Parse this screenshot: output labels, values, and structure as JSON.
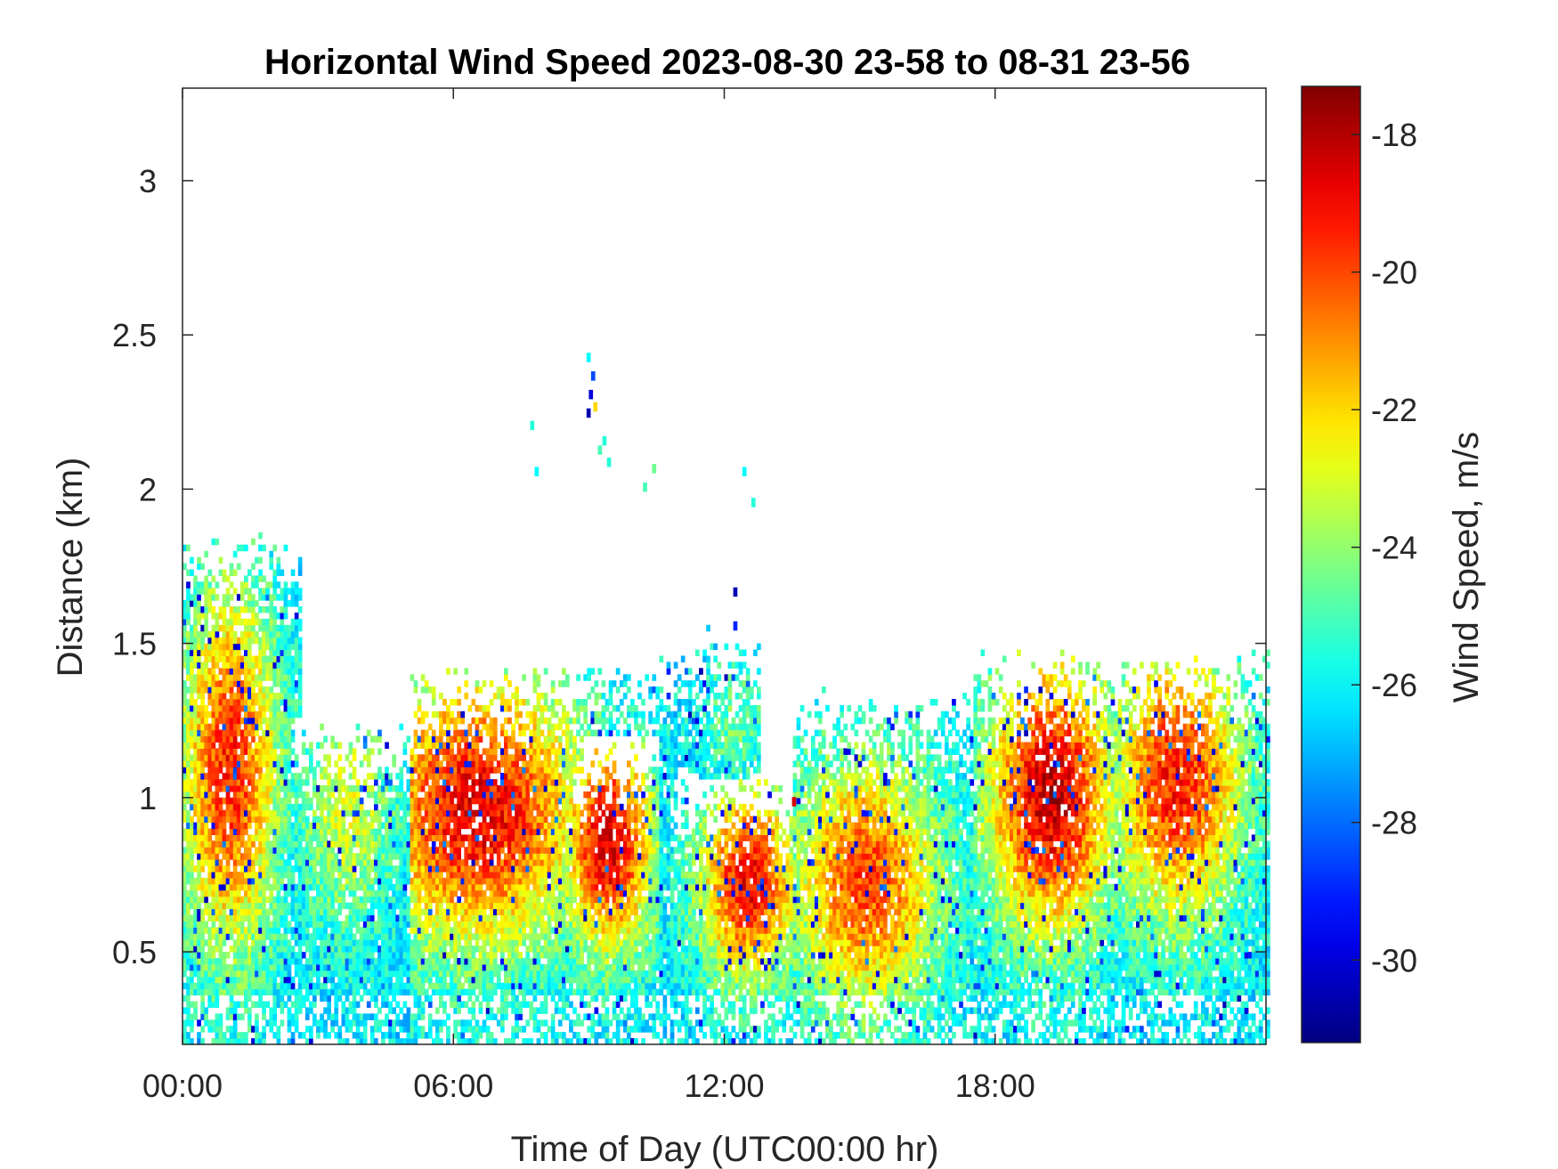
{
  "chart_data": {
    "type": "heatmap",
    "title": "Horizontal Wind Speed 2023-08-30 23-58 to 08-31 23-56",
    "xlabel": "Time of Day (UTC00:00 hr)",
    "ylabel": "Distance (km)",
    "colorbar_label": "Wind Speed, m/s",
    "x_unit": "hour",
    "xlim": [
      0,
      24
    ],
    "ylim": [
      0.2,
      3.3
    ],
    "clim": [
      -31.2,
      -17.3
    ],
    "colormap": "jet",
    "x_ticks": [
      0,
      6,
      12,
      18
    ],
    "x_tick_labels": [
      "00:00",
      "06:00",
      "12:00",
      "18:00"
    ],
    "y_ticks": [
      0.5,
      1,
      1.5,
      2,
      2.5,
      3
    ],
    "y_tick_labels": [
      "0.5",
      "1",
      "1.5",
      "2",
      "2.5",
      "3"
    ],
    "c_ticks": [
      -18,
      -20,
      -22,
      -24,
      -26,
      -28,
      -30
    ],
    "c_tick_labels": [
      "-18",
      "-20",
      "-22",
      "-24",
      "-26",
      "-28",
      "-30"
    ],
    "grid": false,
    "layers": [
      {
        "time_hr": [
          0,
          2.6
        ],
        "height_km": [
          0.2,
          1.85
        ],
        "core_speed_ms": -19.5,
        "core_time_hr": 1.0,
        "core_height_km": 1.08
      },
      {
        "time_hr": [
          2.4,
          5.0
        ],
        "height_km": [
          0.2,
          1.25
        ],
        "core_speed_ms": -23.0,
        "core_time_hr": 3.6,
        "core_height_km": 0.95
      },
      {
        "time_hr": [
          5.0,
          11.0
        ],
        "height_km": [
          0.2,
          1.45
        ],
        "core_speed_ms": -18.8,
        "core_time_hr": 6.5,
        "core_height_km": 0.95
      },
      {
        "time_hr": [
          8.0,
          10.5
        ],
        "height_km": [
          0.2,
          1.2
        ],
        "core_speed_ms": -18.5,
        "core_time_hr": 9.4,
        "core_height_km": 0.85
      },
      {
        "time_hr": [
          10.8,
          13.5
        ],
        "height_km": [
          0.2,
          1.1
        ],
        "core_speed_ms": -19.0,
        "core_time_hr": 12.5,
        "core_height_km": 0.72
      },
      {
        "time_hr": [
          11.0,
          12.8
        ],
        "height_km": [
          1.0,
          1.55
        ],
        "core_speed_ms": -24.5,
        "core_time_hr": 12.2,
        "core_height_km": 1.25
      },
      {
        "time_hr": [
          13.5,
          17.5
        ],
        "height_km": [
          0.2,
          1.35
        ],
        "core_speed_ms": -20.0,
        "core_time_hr": 15.1,
        "core_height_km": 0.72
      },
      {
        "time_hr": [
          17.5,
          21.0
        ],
        "height_km": [
          0.2,
          1.48
        ],
        "core_speed_ms": -18.3,
        "core_time_hr": 19.2,
        "core_height_km": 1.0
      },
      {
        "time_hr": [
          20.5,
          24.0
        ],
        "height_km": [
          0.2,
          1.48
        ],
        "core_speed_ms": -19.3,
        "core_time_hr": 22.0,
        "core_height_km": 1.05
      }
    ],
    "sparse_returns": [
      {
        "time_hr": 8.95,
        "height_km": 2.42,
        "speed_ms": -26.0
      },
      {
        "time_hr": 9.05,
        "height_km": 2.36,
        "speed_ms": -28.5
      },
      {
        "time_hr": 9.0,
        "height_km": 2.3,
        "speed_ms": -30.0
      },
      {
        "time_hr": 8.95,
        "height_km": 2.24,
        "speed_ms": -30.5
      },
      {
        "time_hr": 9.1,
        "height_km": 2.26,
        "speed_ms": -22.0
      },
      {
        "time_hr": 7.7,
        "height_km": 2.2,
        "speed_ms": -25.5
      },
      {
        "time_hr": 7.8,
        "height_km": 2.05,
        "speed_ms": -26.0
      },
      {
        "time_hr": 9.3,
        "height_km": 2.15,
        "speed_ms": -25.5
      },
      {
        "time_hr": 9.2,
        "height_km": 2.12,
        "speed_ms": -25.0
      },
      {
        "time_hr": 9.4,
        "height_km": 2.08,
        "speed_ms": -25.5
      },
      {
        "time_hr": 10.4,
        "height_km": 2.06,
        "speed_ms": -24.5
      },
      {
        "time_hr": 10.2,
        "height_km": 2.0,
        "speed_ms": -25.0
      },
      {
        "time_hr": 12.4,
        "height_km": 2.05,
        "speed_ms": -26.0
      },
      {
        "time_hr": 12.6,
        "height_km": 1.95,
        "speed_ms": -25.5
      },
      {
        "time_hr": 12.2,
        "height_km": 1.66,
        "speed_ms": -30.5
      },
      {
        "time_hr": 12.2,
        "height_km": 1.55,
        "speed_ms": -29.0
      },
      {
        "time_hr": 13.5,
        "height_km": 0.98,
        "speed_ms": -18.5
      }
    ]
  }
}
